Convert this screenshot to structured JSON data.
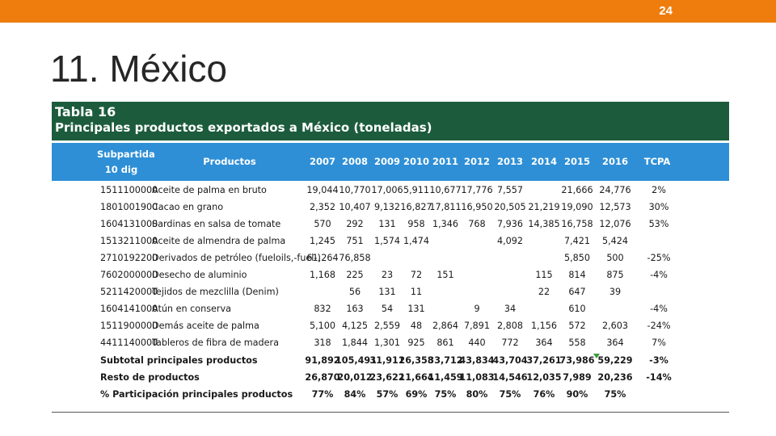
{
  "page_number": "24",
  "slide_title": "11. México",
  "table": {
    "title": "Tabla 16",
    "subtitle": "Principales productos exportados a México (toneladas)",
    "headers": {
      "subpartida_line1": "Subpartida",
      "subpartida_line2": "10 dig",
      "productos": "Productos",
      "years": [
        "2007",
        "2008",
        "2009",
        "2010",
        "2011",
        "2012",
        "2013",
        "2014",
        "2015",
        "2016"
      ],
      "tcpa": "TCPA"
    },
    "rows": [
      {
        "code": "1511100000",
        "product": "Aceite de palma en bruto",
        "values": [
          "19,044",
          "10,770",
          "17,006",
          "5,911",
          "10,677",
          "17,776",
          "7,557",
          "",
          "21,666",
          "24,776"
        ],
        "tcpa": "2%"
      },
      {
        "code": "1801001900",
        "product": "Cacao en grano",
        "values": [
          "2,352",
          "10,407",
          "9,132",
          "16,827",
          "17,811",
          "16,950",
          "20,505",
          "21,219",
          "19,090",
          "12,573"
        ],
        "tcpa": "30%"
      },
      {
        "code": "1604131000",
        "product": "Sardinas en salsa de tomate",
        "values": [
          "570",
          "292",
          "131",
          "958",
          "1,346",
          "768",
          "7,936",
          "14,385",
          "16,758",
          "12,076"
        ],
        "tcpa": "53%"
      },
      {
        "code": "1513211000",
        "product": "Aceite de almendra de palma",
        "values": [
          "1,245",
          "751",
          "1,574",
          "1,474",
          "",
          "",
          "4,092",
          "",
          "7,421",
          "5,424"
        ],
        "tcpa": ""
      },
      {
        "code": "2710192200",
        "product": "Derivados de petróleo (fueloils,-fuel-)",
        "values": [
          "61,264",
          "76,858",
          "",
          "",
          "",
          "",
          "",
          "",
          "5,850",
          "500"
        ],
        "tcpa": "-25%"
      },
      {
        "code": "7602000000",
        "product": "Desecho de aluminio",
        "values": [
          "1,168",
          "225",
          "23",
          "72",
          "151",
          "",
          "",
          "115",
          "814",
          "875"
        ],
        "tcpa": "-4%"
      },
      {
        "code": "5211420000",
        "product": "Tejidos de mezclilla (Denim)",
        "values": [
          "",
          "56",
          "131",
          "11",
          "",
          "",
          "",
          "22",
          "647",
          "39"
        ],
        "tcpa": ""
      },
      {
        "code": "1604141000",
        "product": "Atún en conserva",
        "values": [
          "832",
          "163",
          "54",
          "131",
          "",
          "9",
          "34",
          "",
          "610",
          ""
        ],
        "tcpa": "-4%"
      },
      {
        "code": "1511900000",
        "product": "Demás aceite de palma",
        "values": [
          "5,100",
          "4,125",
          "2,559",
          "48",
          "2,864",
          "7,891",
          "2,808",
          "1,156",
          "572",
          "2,603"
        ],
        "tcpa": "-24%"
      },
      {
        "code": "4411140000",
        "product": "Tableros de fibra de madera",
        "values": [
          "318",
          "1,844",
          "1,301",
          "925",
          "861",
          "440",
          "772",
          "364",
          "558",
          "364"
        ],
        "tcpa": "7%"
      }
    ],
    "totals": [
      {
        "label": "Subtotal principales productos",
        "values": [
          "91,892",
          "105,491",
          "31,911",
          "26,358",
          "33,712",
          "43,834",
          "43,704",
          "37,261",
          "73,986",
          "59,229"
        ],
        "tcpa": "-3%"
      },
      {
        "label": "Resto de productos",
        "values": [
          "26,870",
          "20,012",
          "23,622",
          "11,664",
          "11,459",
          "11,083",
          "14,546",
          "12,035",
          "7,989",
          "20,236"
        ],
        "tcpa": "-14%"
      },
      {
        "label": "% Participación principales productos",
        "values": [
          "77%",
          "84%",
          "57%",
          "69%",
          "75%",
          "80%",
          "75%",
          "76%",
          "90%",
          "75%"
        ],
        "tcpa": ""
      }
    ]
  },
  "colors": {
    "topbar": "#ee7d0d",
    "table_title_bg": "#1c5c3c",
    "column_header_bg": "#2e8fd6"
  }
}
